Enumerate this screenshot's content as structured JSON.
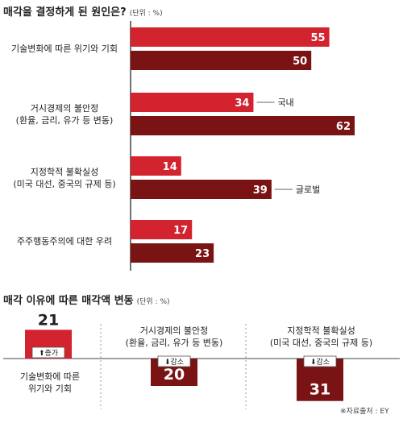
{
  "colors": {
    "domestic": "#d2232f",
    "global": "#7a1414",
    "axis": "#444444",
    "light": "#cfcfcf"
  },
  "chart1": {
    "title": "매각을 결정하게 된 원인은?",
    "unit": "(단위 : %)",
    "legend_domestic": "국내",
    "legend_global": "글로벌"
  },
  "chart2": {
    "title": "매각 이유에 따른 매각액 변동",
    "unit": "(단위 : %)",
    "increase_label": "증가",
    "decrease_label": "감소",
    "labels": [
      [
        "기술변화에 따른",
        "위기와 기회"
      ],
      [
        "거시경제의 불안정",
        "(환율, 금리, 유가 등 변동)"
      ],
      [
        "지정학적 불확실성",
        "(미국 대선, 중국의 규제 등)"
      ]
    ]
  },
  "source": "※자료출처 : EY",
  "chart_data": [
    {
      "type": "bar",
      "orientation": "horizontal",
      "title": "매각을 결정하게 된 원인은?",
      "categories": [
        [
          "기술변화에 따른 위기와 기회"
        ],
        [
          "거시경제의 불안정",
          "(환율, 금리, 유가 등 변동)"
        ],
        [
          "지정학적 불확실성",
          "(미국 대선, 중국의 규제 등)"
        ],
        [
          "주주행동주의에 대한 우려"
        ]
      ],
      "series": [
        {
          "name": "국내",
          "values": [
            55,
            34,
            14,
            17
          ]
        },
        {
          "name": "글로벌",
          "values": [
            50,
            62,
            39,
            23
          ]
        }
      ],
      "xlim": [
        0,
        70
      ]
    },
    {
      "type": "bar",
      "title": "매각 이유에 따른 매각액 변동",
      "categories": [
        "기술변화에 따른 위기와 기회",
        "거시경제의 불안정",
        "지정학적 불확실성"
      ],
      "values": [
        21,
        -20,
        -31
      ],
      "directions": [
        "증가",
        "감소",
        "감소"
      ],
      "ylim": [
        -35,
        35
      ]
    }
  ]
}
